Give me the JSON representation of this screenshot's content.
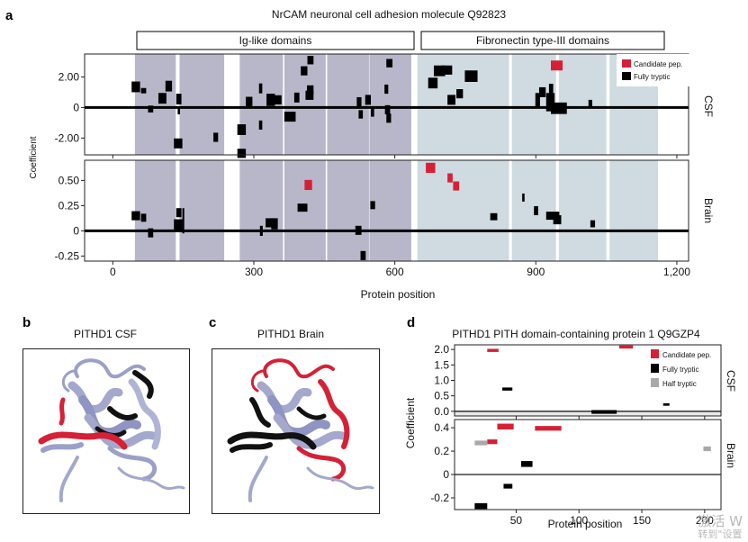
{
  "panels": {
    "a": {
      "label": "a",
      "title": "NrCAM neuronal cell adhesion molecule Q92823",
      "domain_labels": [
        "Ig-like domains",
        "Fibronectin type-III domains"
      ],
      "ylabel": "Coefficient",
      "xlabel": "Protein position",
      "row_labels": [
        "CSF",
        "Brain"
      ],
      "legend": [
        "Candidate pep.",
        "Fully tryptic"
      ]
    },
    "b": {
      "label": "b",
      "title": "PITHD1 CSF"
    },
    "c": {
      "label": "c",
      "title": "PITHD1 Brain"
    },
    "d": {
      "label": "d",
      "title": "PITHD1 PITH domain-containing protein 1 Q9GZP4",
      "ylabel": "Coefficient",
      "xlabel": "Protein position",
      "row_labels": [
        "CSF",
        "Brain"
      ],
      "legend": [
        "Candidate pep.",
        "Fully tryptic",
        "Half tryptic"
      ]
    }
  },
  "colors": {
    "candidate": "#d62035",
    "fully_tryptic": "#000000",
    "half_tryptic": "#a9a9a9",
    "ig_band": "#b8b7c9",
    "fn_band": "#cfdbe1",
    "protein_body": "#a3a8cc"
  },
  "watermark": {
    "line1": "激活 W",
    "line2": "转到\"设置"
  },
  "chart_data": [
    {
      "type": "bar",
      "id": "a-csf",
      "title": "NrCAM neuronal cell adhesion molecule Q92823",
      "xlabel": "Protein position",
      "ylabel": "Coefficient",
      "xlim": [
        -60,
        1225
      ],
      "ylim": [
        -3.1,
        3.5
      ],
      "x_ticks": [
        0,
        300,
        600,
        900,
        1200
      ],
      "x_tick_labels": [
        "0",
        "300",
        "600",
        "900",
        "1,200"
      ],
      "y_ticks": [
        2,
        0,
        -2
      ],
      "y_tick_labels": [
        "2.00",
        "0",
        "-2.00"
      ],
      "row_label": "CSF",
      "domain_bands": [
        {
          "name": "Ig-like",
          "ranges": [
            [
              47,
              134
            ],
            [
              142,
              237
            ],
            [
              270,
              362
            ],
            [
              365,
              453
            ],
            [
              456,
              545
            ],
            [
              546,
              635
            ]
          ]
        },
        {
          "name": "Fibronectin type-III",
          "ranges": [
            [
              648,
              843
            ],
            [
              849,
              943
            ],
            [
              949,
              1050
            ],
            [
              1057,
              1160
            ]
          ]
        }
      ],
      "legend": {
        "entries": [
          "Candidate pep.",
          "Fully tryptic"
        ],
        "position": "top-right"
      },
      "series": [
        {
          "name": "Candidate pep.",
          "peptides": [
            {
              "start": 932,
              "end": 957,
              "value": 2.75,
              "height": 0.65
            }
          ]
        },
        {
          "name": "Fully tryptic",
          "peptides": [
            {
              "start": 40,
              "end": 58,
              "value": 1.35,
              "height": 0.7
            },
            {
              "start": 60,
              "end": 71,
              "value": 1.1,
              "height": 0.35
            },
            {
              "start": 75,
              "end": 86,
              "value": -0.1,
              "height": 0.45
            },
            {
              "start": 97,
              "end": 114,
              "value": 0.6,
              "height": 0.7
            },
            {
              "start": 112,
              "end": 126,
              "value": 1.4,
              "height": 0.7
            },
            {
              "start": 135,
              "end": 146,
              "value": 0.55,
              "height": 0.7
            },
            {
              "start": 138,
              "end": 143,
              "value": -0.2,
              "height": 0.5
            },
            {
              "start": 130,
              "end": 148,
              "value": -2.35,
              "height": 0.65
            },
            {
              "start": 214,
              "end": 224,
              "value": -1.95,
              "height": 0.6
            },
            {
              "start": 265,
              "end": 283,
              "value": -1.45,
              "height": 0.7
            },
            {
              "start": 265,
              "end": 283,
              "value": -3.0,
              "height": 0.6
            },
            {
              "start": 283,
              "end": 297,
              "value": 0.35,
              "height": 0.7
            },
            {
              "start": 311,
              "end": 318,
              "value": 1.25,
              "height": 0.65
            },
            {
              "start": 311,
              "end": 318,
              "value": -1.15,
              "height": 0.6
            },
            {
              "start": 327,
              "end": 345,
              "value": 0.5,
              "height": 0.8
            },
            {
              "start": 340,
              "end": 359,
              "value": 0.5,
              "height": 0.6
            },
            {
              "start": 365,
              "end": 389,
              "value": -0.6,
              "height": 0.65
            },
            {
              "start": 386,
              "end": 397,
              "value": 0.65,
              "height": 0.65
            },
            {
              "start": 400,
              "end": 414,
              "value": 2.4,
              "height": 0.6
            },
            {
              "start": 410,
              "end": 427,
              "value": 0.8,
              "height": 0.6
            },
            {
              "start": 413,
              "end": 427,
              "value": 1.15,
              "height": 0.6
            },
            {
              "start": 414,
              "end": 427,
              "value": 3.1,
              "height": 0.55
            },
            {
              "start": 519,
              "end": 529,
              "value": 0.35,
              "height": 0.65
            },
            {
              "start": 523,
              "end": 532,
              "value": -0.45,
              "height": 0.55
            },
            {
              "start": 537,
              "end": 549,
              "value": 0.5,
              "height": 0.65
            },
            {
              "start": 549,
              "end": 556,
              "value": -0.3,
              "height": 0.6
            },
            {
              "start": 578,
              "end": 586,
              "value": 1.2,
              "height": 0.6
            },
            {
              "start": 579,
              "end": 590,
              "value": -0.15,
              "height": 0.6
            },
            {
              "start": 582,
              "end": 592,
              "value": -0.7,
              "height": 0.6
            },
            {
              "start": 582,
              "end": 595,
              "value": 2.9,
              "height": 0.55
            },
            {
              "start": 671,
              "end": 691,
              "value": 1.6,
              "height": 0.7
            },
            {
              "start": 683,
              "end": 707,
              "value": 2.4,
              "height": 0.7
            },
            {
              "start": 700,
              "end": 722,
              "value": 2.45,
              "height": 0.6
            },
            {
              "start": 712,
              "end": 729,
              "value": 0.5,
              "height": 0.65
            },
            {
              "start": 731,
              "end": 745,
              "value": 0.9,
              "height": 0.6
            },
            {
              "start": 749,
              "end": 776,
              "value": 2.05,
              "height": 0.75
            },
            {
              "start": 899,
              "end": 909,
              "value": 0.5,
              "height": 0.9
            },
            {
              "start": 907,
              "end": 921,
              "value": 1.0,
              "height": 0.65
            },
            {
              "start": 922,
              "end": 940,
              "value": 0.35,
              "height": 1.2
            },
            {
              "start": 928,
              "end": 937,
              "value": 1.2,
              "height": 0.7
            },
            {
              "start": 932,
              "end": 966,
              "value": -0.05,
              "height": 0.75
            },
            {
              "start": 1012,
              "end": 1020,
              "value": 0.25,
              "height": 0.5
            }
          ]
        }
      ]
    },
    {
      "type": "bar",
      "id": "a-brain",
      "xlabel": "Protein position",
      "ylabel": "Coefficient",
      "xlim": [
        -60,
        1225
      ],
      "ylim": [
        -0.3,
        0.7
      ],
      "x_ticks": [
        0,
        300,
        600,
        900,
        1200
      ],
      "x_tick_labels": [
        "0",
        "300",
        "600",
        "900",
        "1,200"
      ],
      "y_ticks": [
        0.5,
        0.25,
        0,
        -0.25
      ],
      "y_tick_labels": [
        "0.50",
        "0.25",
        "0",
        "-0.25"
      ],
      "row_label": "Brain",
      "series": [
        {
          "name": "Candidate pep.",
          "peptides": [
            {
              "start": 666,
              "end": 686,
              "value": 0.625,
              "height": 0.1
            },
            {
              "start": 712,
              "end": 723,
              "value": 0.525,
              "height": 0.09
            },
            {
              "start": 724,
              "end": 737,
              "value": 0.445,
              "height": 0.09
            },
            {
              "start": 408,
              "end": 424,
              "value": 0.455,
              "height": 0.1
            }
          ]
        },
        {
          "name": "Fully tryptic",
          "peptides": [
            {
              "start": 40,
              "end": 58,
              "value": 0.15,
              "height": 0.09
            },
            {
              "start": 60,
              "end": 71,
              "value": 0.13,
              "height": 0.08
            },
            {
              "start": 75,
              "end": 86,
              "value": -0.02,
              "height": 0.09
            },
            {
              "start": 130,
              "end": 148,
              "value": 0.06,
              "height": 0.11
            },
            {
              "start": 135,
              "end": 146,
              "value": 0.18,
              "height": 0.09
            },
            {
              "start": 148,
              "end": 152,
              "value": 0.1,
              "height": 0.25
            },
            {
              "start": 313,
              "end": 319,
              "value": 0.0,
              "height": 0.1
            },
            {
              "start": 325,
              "end": 341,
              "value": 0.08,
              "height": 0.09
            },
            {
              "start": 337,
              "end": 351,
              "value": 0.07,
              "height": 0.11
            },
            {
              "start": 393,
              "end": 414,
              "value": 0.23,
              "height": 0.08
            },
            {
              "start": 516,
              "end": 529,
              "value": 0.005,
              "height": 0.09
            },
            {
              "start": 527,
              "end": 538,
              "value": -0.245,
              "height": 0.09
            },
            {
              "start": 548,
              "end": 558,
              "value": 0.255,
              "height": 0.08
            },
            {
              "start": 803,
              "end": 818,
              "value": 0.14,
              "height": 0.07
            },
            {
              "start": 871,
              "end": 876,
              "value": 0.33,
              "height": 0.08
            },
            {
              "start": 896,
              "end": 905,
              "value": 0.2,
              "height": 0.09
            },
            {
              "start": 922,
              "end": 950,
              "value": 0.15,
              "height": 0.08
            },
            {
              "start": 937,
              "end": 954,
              "value": 0.11,
              "height": 0.09
            },
            {
              "start": 1016,
              "end": 1026,
              "value": 0.07,
              "height": 0.07
            }
          ]
        }
      ]
    },
    {
      "type": "bar",
      "id": "d-csf",
      "title": "PITHD1 PITH domain-containing protein 1 Q9GZP4",
      "xlabel": "Protein position",
      "ylabel": "Coefficient",
      "xlim": [
        1,
        213
      ],
      "ylim": [
        -0.15,
        2.15
      ],
      "x_ticks": [
        50,
        100,
        150,
        200
      ],
      "x_tick_labels": [
        "50",
        "100",
        "150",
        "200"
      ],
      "y_ticks": [
        2.0,
        1.5,
        1.0,
        0.5,
        0.0
      ],
      "y_tick_labels": [
        "2.0",
        "1.5",
        "1.0",
        "0.5",
        "0.0"
      ],
      "row_label": "CSF",
      "legend": {
        "entries": [
          "Candidate pep.",
          "Fully tryptic",
          "Half tryptic"
        ],
        "position": "top-right"
      },
      "series": [
        {
          "name": "Candidate pep.",
          "peptides": [
            {
              "start": 27,
              "end": 36,
              "value": 1.97,
              "height": 0.1
            },
            {
              "start": 132,
              "end": 143,
              "value": 2.08,
              "height": 0.1
            }
          ]
        },
        {
          "name": "Fully tryptic",
          "peptides": [
            {
              "start": 39,
              "end": 47,
              "value": 0.72,
              "height": 0.1
            },
            {
              "start": 110,
              "end": 130,
              "value": -0.02,
              "height": 0.12
            },
            {
              "start": 167,
              "end": 172,
              "value": 0.22,
              "height": 0.08
            }
          ]
        }
      ]
    },
    {
      "type": "bar",
      "id": "d-brain",
      "xlabel": "Protein position",
      "ylabel": "Coefficient",
      "xlim": [
        1,
        213
      ],
      "ylim": [
        -0.3,
        0.47
      ],
      "x_ticks": [
        50,
        100,
        150,
        200
      ],
      "x_tick_labels": [
        "50",
        "100",
        "150",
        "200"
      ],
      "y_ticks": [
        0.4,
        0.2,
        0,
        -0.2
      ],
      "y_tick_labels": [
        "0.4",
        "0.2",
        "0",
        "-0.2"
      ],
      "row_label": "Brain",
      "series": [
        {
          "name": "Candidate pep.",
          "peptides": [
            {
              "start": 35,
              "end": 48,
              "value": 0.41,
              "height": 0.05
            },
            {
              "start": 65,
              "end": 86,
              "value": 0.395,
              "height": 0.04
            },
            {
              "start": 27,
              "end": 35,
              "value": 0.28,
              "height": 0.04
            }
          ]
        },
        {
          "name": "Fully tryptic",
          "peptides": [
            {
              "start": 54,
              "end": 63,
              "value": 0.09,
              "height": 0.05
            },
            {
              "start": 40,
              "end": 47,
              "value": -0.1,
              "height": 0.04
            },
            {
              "start": 17,
              "end": 27,
              "value": -0.27,
              "height": 0.05
            }
          ]
        },
        {
          "name": "Half tryptic",
          "peptides": [
            {
              "start": 17,
              "end": 27,
              "value": 0.27,
              "height": 0.04
            },
            {
              "start": 199,
              "end": 205,
              "value": 0.22,
              "height": 0.04
            }
          ]
        }
      ]
    }
  ]
}
